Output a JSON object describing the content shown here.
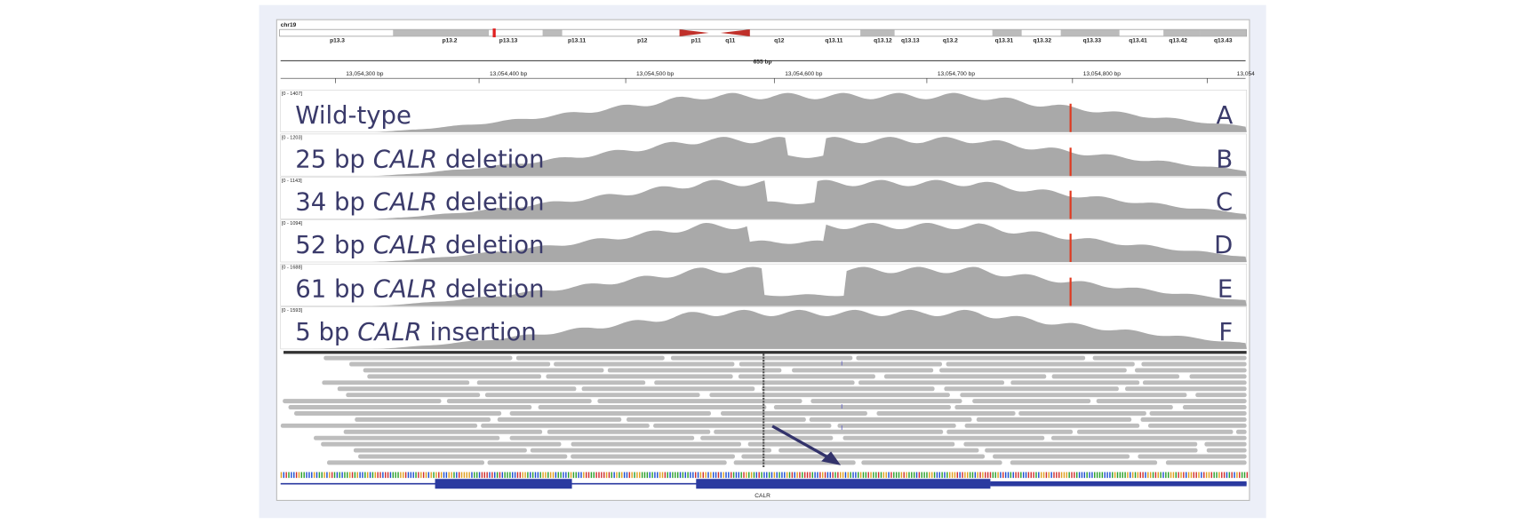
{
  "chromosome": "chr19",
  "bands": [
    "p13.3",
    "p13.2",
    "p13.13",
    "p13.11",
    "p12",
    "p11",
    "q11",
    "q12",
    "q13.11",
    "q13.12",
    "q13.13",
    "q13.2",
    "q13.31",
    "q13.32",
    "q13.33",
    "q13.41",
    "q13.42",
    "q13.43"
  ],
  "span": "655 bp",
  "positions": [
    "13,054,300 bp",
    "13,054,400 bp",
    "13,054,500 bp",
    "13,054,600 bp",
    "13,054,700 bp",
    "13,054,800 bp",
    "13,054"
  ],
  "tracks": [
    {
      "range": "[0 - 1407]",
      "label_parts": [
        "Wild-type"
      ],
      "letter": "A"
    },
    {
      "range": "[0 - 1203]",
      "label_parts": [
        "25 bp",
        "CALR",
        "deletion"
      ],
      "italic_part": 1,
      "letter": "B"
    },
    {
      "range": "[0 - 1143]",
      "label_parts": [
        "34 bp",
        "CALR",
        "deletion"
      ],
      "italic_part": 1,
      "letter": "C"
    },
    {
      "range": "[0 - 1094]",
      "label_parts": [
        "52 bp",
        "CALR",
        "deletion"
      ],
      "italic_part": 1,
      "letter": "D"
    },
    {
      "range": "[0 - 1688]",
      "label_parts": [
        "61 bp",
        "CALR",
        "deletion"
      ],
      "italic_part": 1,
      "letter": "E"
    },
    {
      "range": "[0 - 1593]",
      "label_parts": [
        "5 bp",
        "CALR",
        "insertion"
      ],
      "italic_part": 1,
      "letter": "F"
    }
  ],
  "gene": "CALR"
}
